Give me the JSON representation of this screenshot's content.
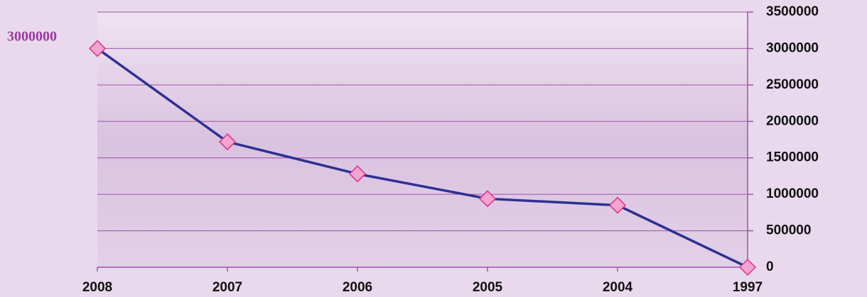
{
  "chart_data": {
    "type": "line",
    "categories": [
      "2008",
      "2007",
      "2006",
      "2005",
      "2004",
      "1997"
    ],
    "values": [
      3000000,
      1720000,
      1280000,
      940000,
      850000,
      0
    ],
    "color": "#2e3192",
    "marker_color": "#f5a3cf",
    "marker_edge": "#d8358a",
    "grid_color": "#a052a8",
    "ylim": [
      0,
      3500000
    ],
    "yticks": [
      0,
      500000,
      1000000,
      1500000,
      2000000,
      2500000,
      3000000,
      3500000
    ],
    "grid": true
  }
}
